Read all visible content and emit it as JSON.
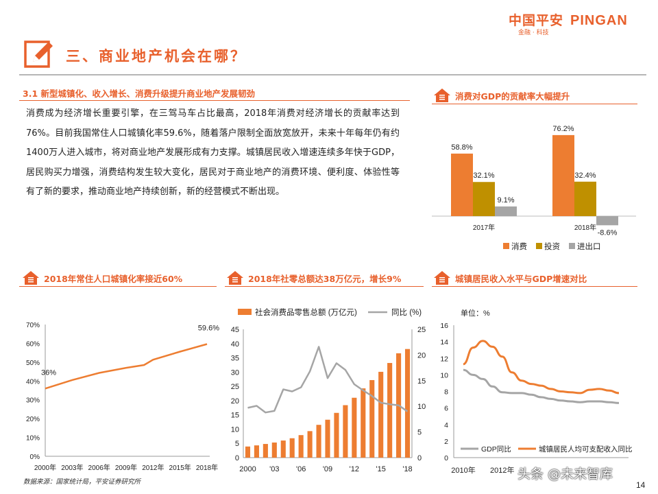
{
  "header": {
    "logo_cn": "中国平安",
    "logo_en": "PINGAN",
    "logo_sub": "金融 · 科技"
  },
  "page_title": "三、商业地产机会在哪？",
  "section": {
    "heading": "3.1 新型城镇化、收入增长、消费升级提升商业地产发展韧劲",
    "body": "消费成为经济增长重要引擎，在三驾马车占比最高，2018年消费对经济增长的贡献率达到76%。目前我国常住人口城镇化率59.6%，随着落户限制全面放宽放开，未来十年每年仍有约1400万人进入城市，将对商业地产发展形成有力支撑。城镇居民收入增速连续多年快于GDP，居民购买力增强，消费结构发生较大变化，居民对于商业地产的消费环境、便利度、体验性等有了新的要求，推动商业地产持续创新，新的经营模式不断出现。"
  },
  "panels": {
    "gdp_contribution": {
      "title": "消费对GDP的贡献率大幅提升"
    },
    "urbanization": {
      "title": "2018年常住人口城镇化率接近60%"
    },
    "retail_sales": {
      "title": "2018年社零总额达38万亿元，增长9%"
    },
    "income_vs_gdp": {
      "title": "城镇居民收入水平与GDP增速对比"
    }
  },
  "colors": {
    "orange": "#ed7d31",
    "gold": "#bf9000",
    "gray": "#a5a5a5",
    "brand": "#e8602c"
  },
  "chart_data": [
    {
      "type": "bar",
      "categories": [
        "2017年",
        "2018年"
      ],
      "series": [
        {
          "name": "消费",
          "values": [
            58.8,
            76.2
          ],
          "labels": [
            "58.8%",
            "76.2%"
          ],
          "color": "#ed7d31"
        },
        {
          "name": "投资",
          "values": [
            32.1,
            32.4
          ],
          "labels": [
            "32.1%",
            "32.4%"
          ],
          "color": "#bf9000"
        },
        {
          "name": "进出口",
          "values": [
            9.1,
            -8.6
          ],
          "labels": [
            "9.1%",
            "-8.6%"
          ],
          "color": "#a5a5a5"
        }
      ],
      "ylim": [
        -10,
        80
      ],
      "legend": "bottom"
    },
    {
      "type": "line",
      "x": [
        2000,
        2003,
        2006,
        2009,
        2011,
        2012,
        2015,
        2018
      ],
      "values": [
        36,
        40.5,
        44.3,
        47.0,
        48.5,
        51.3,
        55.6,
        59.6
      ],
      "point_labels": [
        {
          "x": 2000,
          "label": "36%"
        },
        {
          "x": 2018,
          "label": "59.6%"
        }
      ],
      "xticks": [
        "2000年",
        "2003年",
        "2006年",
        "2009年",
        "2012年",
        "2015年",
        "2018年"
      ],
      "yticks": [
        "0%",
        "10%",
        "20%",
        "30%",
        "40%",
        "50%",
        "60%",
        "70%"
      ],
      "ylim": [
        0,
        70
      ],
      "xlim": [
        2000,
        2018
      ]
    },
    {
      "type": "bar",
      "legend": "top",
      "x": [
        2000,
        2001,
        2002,
        2003,
        2004,
        2005,
        2006,
        2007,
        2008,
        2009,
        2010,
        2011,
        2012,
        2013,
        2014,
        2015,
        2016,
        2017,
        2018
      ],
      "series": [
        {
          "name": "社会消费品零售总额 (万亿元)",
          "type": "bar",
          "axis": "left",
          "color": "#ed7d31",
          "values": [
            3.9,
            4.3,
            4.8,
            5.3,
            6.0,
            6.8,
            7.9,
            9.3,
            11.5,
            13.3,
            15.7,
            18.4,
            21.0,
            24.3,
            27.2,
            30.1,
            33.2,
            36.6,
            38.1
          ]
        },
        {
          "name": "同比 (%)",
          "type": "line",
          "axis": "right",
          "color": "#a5a5a5",
          "values": [
            9.7,
            10.1,
            8.8,
            9.1,
            13.3,
            12.9,
            13.7,
            16.8,
            21.6,
            15.5,
            18.4,
            17.1,
            14.3,
            13.1,
            12.0,
            10.7,
            10.4,
            10.2,
            9.0
          ]
        }
      ],
      "xticks": [
        "2000",
        "'03",
        "'06",
        "'09",
        "'12",
        "'15",
        "'18"
      ],
      "yticks_left": [
        "0",
        "5",
        "10",
        "15",
        "20",
        "25",
        "30",
        "35",
        "40",
        "45"
      ],
      "yticks_right": [
        "0",
        "5",
        "10",
        "15",
        "20",
        "25"
      ],
      "ylim_left": [
        0,
        45
      ],
      "ylim_right": [
        0,
        25
      ]
    },
    {
      "type": "line",
      "unit_label": "单位：%",
      "x": [
        2010,
        2010.5,
        2011,
        2011.5,
        2012,
        2012.5,
        2013,
        2013.5,
        2014,
        2014.5,
        2015,
        2015.5,
        2016,
        2016.5,
        2017,
        2017.5,
        2018
      ],
      "series": [
        {
          "name": "GDP同比",
          "color": "#a5a5a5",
          "values": [
            10.6,
            10.0,
            9.5,
            8.6,
            7.9,
            7.8,
            7.8,
            7.6,
            7.3,
            7.1,
            6.9,
            6.8,
            6.7,
            6.8,
            6.8,
            6.7,
            6.6
          ]
        },
        {
          "name": "城镇居民人均可支配收入同比",
          "color": "#ed7d31",
          "values": [
            11.3,
            13.3,
            14.1,
            13.4,
            12.2,
            10.3,
            9.3,
            8.9,
            8.7,
            8.3,
            8.0,
            7.9,
            7.8,
            8.2,
            8.3,
            8.1,
            7.8
          ]
        }
      ],
      "xticks": [
        "2010年",
        "2012年"
      ],
      "yticks": [
        "0",
        "2",
        "4",
        "6",
        "8",
        "10",
        "12",
        "14",
        "16"
      ],
      "ylim": [
        0,
        16
      ],
      "legend": "bottom"
    }
  ],
  "footer": {
    "source": "数据来源：国家统计局，平安证券研究所",
    "page": "14",
    "watermark": "头条 @未来智库"
  }
}
